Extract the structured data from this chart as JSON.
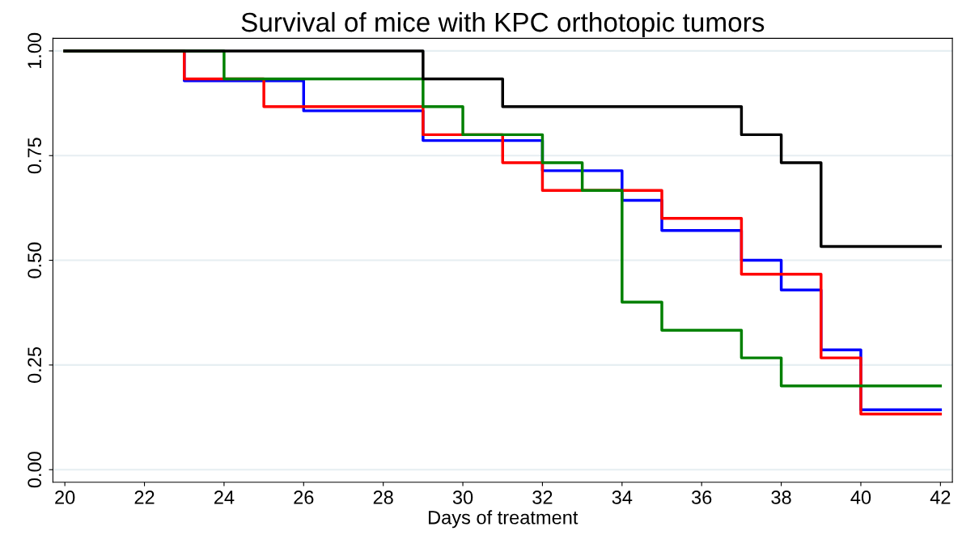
{
  "chart_data": {
    "type": "step",
    "title": "Survival of mice with KPC orthotopic tumors",
    "xlabel": "Days of treatment",
    "xlim": [
      19.7,
      42.3
    ],
    "xticks": [
      20,
      22,
      24,
      26,
      28,
      30,
      32,
      34,
      36,
      38,
      40,
      42
    ],
    "ylim": [
      -0.03,
      1.03
    ],
    "yticks": [
      {
        "value": 0,
        "label": "0.00"
      },
      {
        "value": 0.25,
        "label": "0.25"
      },
      {
        "value": 0.5,
        "label": "0.50"
      },
      {
        "value": 0.75,
        "label": "0.75"
      },
      {
        "value": 1,
        "label": "1.00"
      }
    ],
    "grid": "y",
    "legend": false,
    "series": [
      {
        "color": "#0000ff",
        "x": [
          20,
          23,
          26,
          29,
          32,
          34,
          35,
          37,
          38,
          39,
          40,
          42
        ],
        "values": [
          1,
          0.929,
          0.857,
          0.786,
          0.714,
          0.643,
          0.571,
          0.5,
          0.429,
          0.286,
          0.143,
          0.143
        ]
      },
      {
        "color": "#ff0000",
        "x": [
          20,
          23,
          25,
          29,
          31,
          32,
          35,
          37,
          39,
          40,
          42
        ],
        "values": [
          1,
          0.933,
          0.867,
          0.8,
          0.733,
          0.667,
          0.6,
          0.467,
          0.267,
          0.133,
          0.133
        ]
      },
      {
        "color": "#008000",
        "x": [
          20,
          24,
          29,
          30,
          32,
          33,
          34,
          35,
          37,
          38,
          42
        ],
        "values": [
          1,
          0.933,
          0.867,
          0.8,
          0.733,
          0.667,
          0.4,
          0.333,
          0.267,
          0.2,
          0.2
        ]
      },
      {
        "color": "#000000",
        "x": [
          20,
          29,
          31,
          37,
          38,
          39,
          42
        ],
        "values": [
          1,
          0.933,
          0.867,
          0.8,
          0.733,
          0.533,
          0.533
        ]
      }
    ]
  }
}
